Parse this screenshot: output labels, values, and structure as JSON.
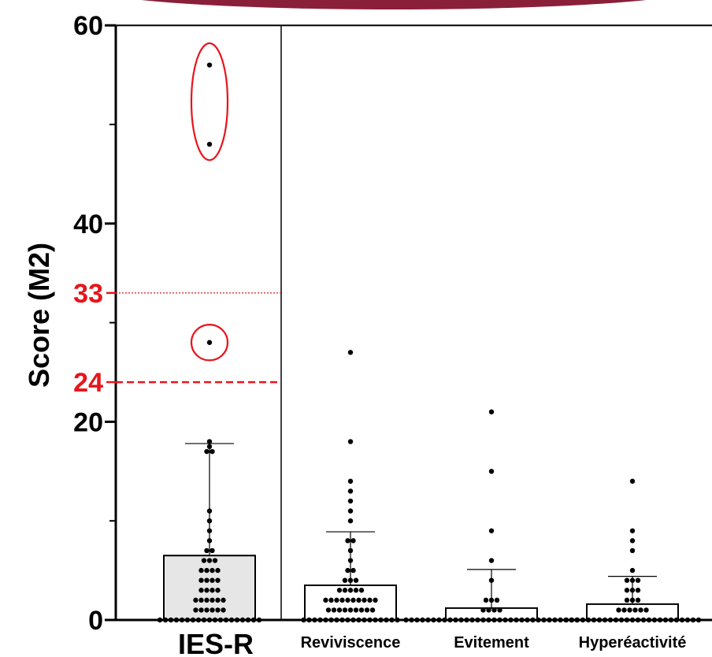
{
  "chart_data": {
    "type": "bar",
    "ylabel": "Score (M2)",
    "ylim": [
      0,
      60
    ],
    "yticks": [
      0,
      20,
      40,
      60
    ],
    "ytick_labels": [
      "0",
      "20",
      "40",
      "60"
    ],
    "minor_ticks": [
      10,
      30,
      50
    ],
    "categories": [
      "IES-R",
      "Reviviscence",
      "Evitement",
      "Hyperéactivité"
    ],
    "bar_means": [
      6.5,
      3.5,
      1.2,
      1.6
    ],
    "error_upper": [
      17.8,
      8.9,
      5.1,
      4.4
    ],
    "points": [
      [
        0,
        0,
        0,
        0,
        0,
        0,
        0,
        0,
        0,
        0,
        0,
        0,
        0,
        0,
        0,
        0,
        0,
        0,
        0,
        1,
        1,
        1,
        1,
        1,
        1,
        2,
        2,
        2,
        2,
        2,
        2,
        3,
        3,
        3,
        3,
        4,
        4,
        4,
        4,
        5,
        5,
        5,
        5,
        6,
        6,
        6,
        7,
        7,
        8,
        9,
        10,
        11,
        17,
        17,
        17.5,
        18,
        28,
        48,
        56
      ],
      [
        0,
        0,
        0,
        0,
        0,
        0,
        0,
        0,
        0,
        0,
        0,
        0,
        0,
        0,
        0,
        0,
        0,
        0,
        1,
        1,
        1,
        1,
        1,
        1,
        1,
        1,
        1,
        2,
        2,
        2,
        2,
        2,
        2,
        2,
        2,
        2,
        2,
        3,
        3,
        3,
        3,
        3,
        4,
        4,
        4,
        5,
        5,
        6,
        7,
        8,
        8,
        10,
        11,
        12,
        13,
        14,
        18,
        27
      ],
      [
        0,
        0,
        0,
        0,
        0,
        0,
        0,
        0,
        0,
        0,
        0,
        0,
        0,
        0,
        0,
        0,
        0,
        0,
        0,
        0,
        0,
        0,
        0,
        0,
        0,
        0,
        0,
        0,
        0,
        0,
        0,
        0,
        1,
        1,
        1,
        1,
        2,
        2,
        2,
        4,
        6,
        9,
        15,
        21
      ],
      [
        0,
        0,
        0,
        0,
        0,
        0,
        0,
        0,
        0,
        0,
        0,
        0,
        0,
        0,
        0,
        0,
        0,
        0,
        0,
        0,
        0,
        0,
        0,
        0,
        0,
        1,
        1,
        1,
        1,
        1,
        1,
        2,
        2,
        2,
        3,
        3,
        3,
        4,
        4,
        4,
        5,
        7,
        8,
        9,
        14
      ]
    ],
    "reference_lines": [
      {
        "value": 33,
        "label": "33",
        "style": "dotted",
        "color": "#e8141b"
      },
      {
        "value": 24,
        "label": "24",
        "style": "dashed",
        "color": "#e8141b"
      }
    ],
    "highlight_ellipses": [
      {
        "category": "IES-R",
        "value_range": [
          46.4,
          58.2
        ]
      },
      {
        "category": "IES-R",
        "value_range": [
          26.2,
          29.8
        ]
      }
    ],
    "colors": {
      "highlight": "#e8141b",
      "axis": "#000000",
      "bar_first": "#e6e6e6",
      "bar_other": "#ffffff",
      "banner": "#8a1f3a"
    }
  }
}
